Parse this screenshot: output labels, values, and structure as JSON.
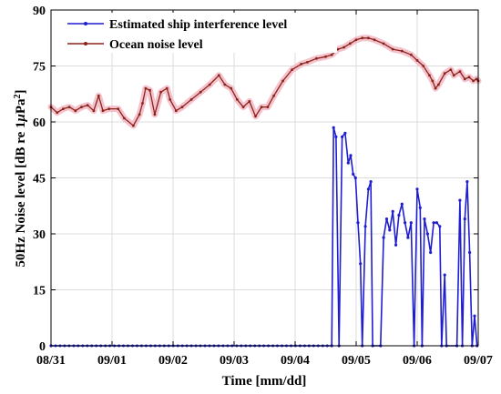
{
  "chart_data": {
    "type": "line",
    "xlabel": "Time [mm/dd]",
    "ylabel": "50Hz Noise level [dB re 1μPa²]",
    "ylabel_main": "50Hz Noise level [dB re 1",
    "ylabel_mu": "μ",
    "ylabel_pa": "Pa",
    "ylabel_sup": "2",
    "ylabel_close": "]",
    "xlim": [
      0,
      7
    ],
    "ylim": [
      0,
      90
    ],
    "x_tick_values": [
      0,
      1,
      2,
      3,
      4,
      5,
      6,
      7
    ],
    "x_tick_labels": [
      "08/31",
      "09/01",
      "09/02",
      "09/03",
      "09/04",
      "09/05",
      "09/06",
      "09/07"
    ],
    "y_ticks": [
      0,
      15,
      30,
      45,
      60,
      75,
      90
    ],
    "grid": true,
    "legend_position": "top-left",
    "series": [
      {
        "name": "Estimated ship interference level",
        "color": "#1f1fd0",
        "marker": "dot",
        "points": [
          [
            0.0,
            0
          ],
          [
            4.6,
            0
          ],
          [
            4.63,
            58.5
          ],
          [
            4.67,
            56
          ],
          [
            4.72,
            0
          ],
          [
            4.77,
            56
          ],
          [
            4.82,
            57
          ],
          [
            4.87,
            49
          ],
          [
            4.91,
            51
          ],
          [
            4.95,
            46
          ],
          [
            4.99,
            45
          ],
          [
            5.03,
            33
          ],
          [
            5.07,
            22
          ],
          [
            5.1,
            0
          ],
          [
            5.15,
            32
          ],
          [
            5.2,
            42
          ],
          [
            5.24,
            44
          ],
          [
            5.27,
            0
          ],
          [
            5.4,
            0
          ],
          [
            5.45,
            29
          ],
          [
            5.5,
            34
          ],
          [
            5.55,
            31
          ],
          [
            5.6,
            36
          ],
          [
            5.65,
            27
          ],
          [
            5.7,
            35
          ],
          [
            5.75,
            38
          ],
          [
            5.8,
            33
          ],
          [
            5.85,
            29
          ],
          [
            5.9,
            33
          ],
          [
            5.95,
            0
          ],
          [
            6.0,
            42
          ],
          [
            6.05,
            37
          ],
          [
            6.08,
            0
          ],
          [
            6.12,
            34
          ],
          [
            6.17,
            30
          ],
          [
            6.22,
            25
          ],
          [
            6.27,
            33
          ],
          [
            6.32,
            33
          ],
          [
            6.37,
            32
          ],
          [
            6.4,
            0
          ],
          [
            6.45,
            19
          ],
          [
            6.48,
            0
          ],
          [
            6.65,
            0
          ],
          [
            6.7,
            39
          ],
          [
            6.74,
            0
          ],
          [
            6.78,
            34
          ],
          [
            6.82,
            44
          ],
          [
            6.86,
            25
          ],
          [
            6.9,
            0
          ],
          [
            6.94,
            8
          ],
          [
            6.98,
            0
          ]
        ]
      },
      {
        "name": "Ocean noise level",
        "color": "#8b2318",
        "marker": "dot",
        "points": [
          [
            0.0,
            64
          ],
          [
            0.1,
            62.5
          ],
          [
            0.2,
            63.5
          ],
          [
            0.3,
            64
          ],
          [
            0.4,
            63
          ],
          [
            0.5,
            64
          ],
          [
            0.6,
            64.5
          ],
          [
            0.7,
            63
          ],
          [
            0.78,
            67
          ],
          [
            0.85,
            63
          ],
          [
            0.95,
            63.5
          ],
          [
            1.1,
            63.5
          ],
          [
            1.2,
            61
          ],
          [
            1.35,
            59
          ],
          [
            1.45,
            62
          ],
          [
            1.5,
            65
          ],
          [
            1.55,
            69
          ],
          [
            1.62,
            68.5
          ],
          [
            1.7,
            62
          ],
          [
            1.8,
            68
          ],
          [
            1.9,
            69
          ],
          [
            1.95,
            66
          ],
          [
            2.05,
            63
          ],
          [
            2.15,
            64
          ],
          [
            2.3,
            66
          ],
          [
            2.45,
            68
          ],
          [
            2.6,
            70
          ],
          [
            2.75,
            72.5
          ],
          [
            2.85,
            70
          ],
          [
            2.95,
            69
          ],
          [
            3.05,
            66
          ],
          [
            3.15,
            64
          ],
          [
            3.25,
            65.5
          ],
          [
            3.35,
            61.5
          ],
          [
            3.45,
            64
          ],
          [
            3.55,
            64
          ],
          [
            3.65,
            67
          ],
          [
            3.8,
            71
          ],
          [
            3.95,
            74
          ],
          [
            4.1,
            75.5
          ],
          [
            4.2,
            76
          ],
          [
            4.35,
            77
          ],
          [
            4.5,
            77.5
          ],
          [
            4.6,
            78
          ],
          [
            4.7,
            79.5
          ],
          [
            4.8,
            80
          ],
          [
            4.9,
            81
          ],
          [
            5.0,
            82
          ],
          [
            5.1,
            82.5
          ],
          [
            5.2,
            82.5
          ],
          [
            5.3,
            82
          ],
          [
            5.45,
            81
          ],
          [
            5.6,
            79.5
          ],
          [
            5.75,
            79
          ],
          [
            5.9,
            78
          ],
          [
            6.0,
            76.5
          ],
          [
            6.1,
            75
          ],
          [
            6.2,
            72.5
          ],
          [
            6.25,
            71
          ],
          [
            6.3,
            69
          ],
          [
            6.35,
            70
          ],
          [
            6.45,
            73
          ],
          [
            6.55,
            74
          ],
          [
            6.6,
            72.5
          ],
          [
            6.7,
            73.5
          ],
          [
            6.78,
            71.5
          ],
          [
            6.85,
            72
          ],
          [
            6.92,
            71
          ],
          [
            6.97,
            71.5
          ],
          [
            7.0,
            71
          ]
        ]
      }
    ]
  }
}
